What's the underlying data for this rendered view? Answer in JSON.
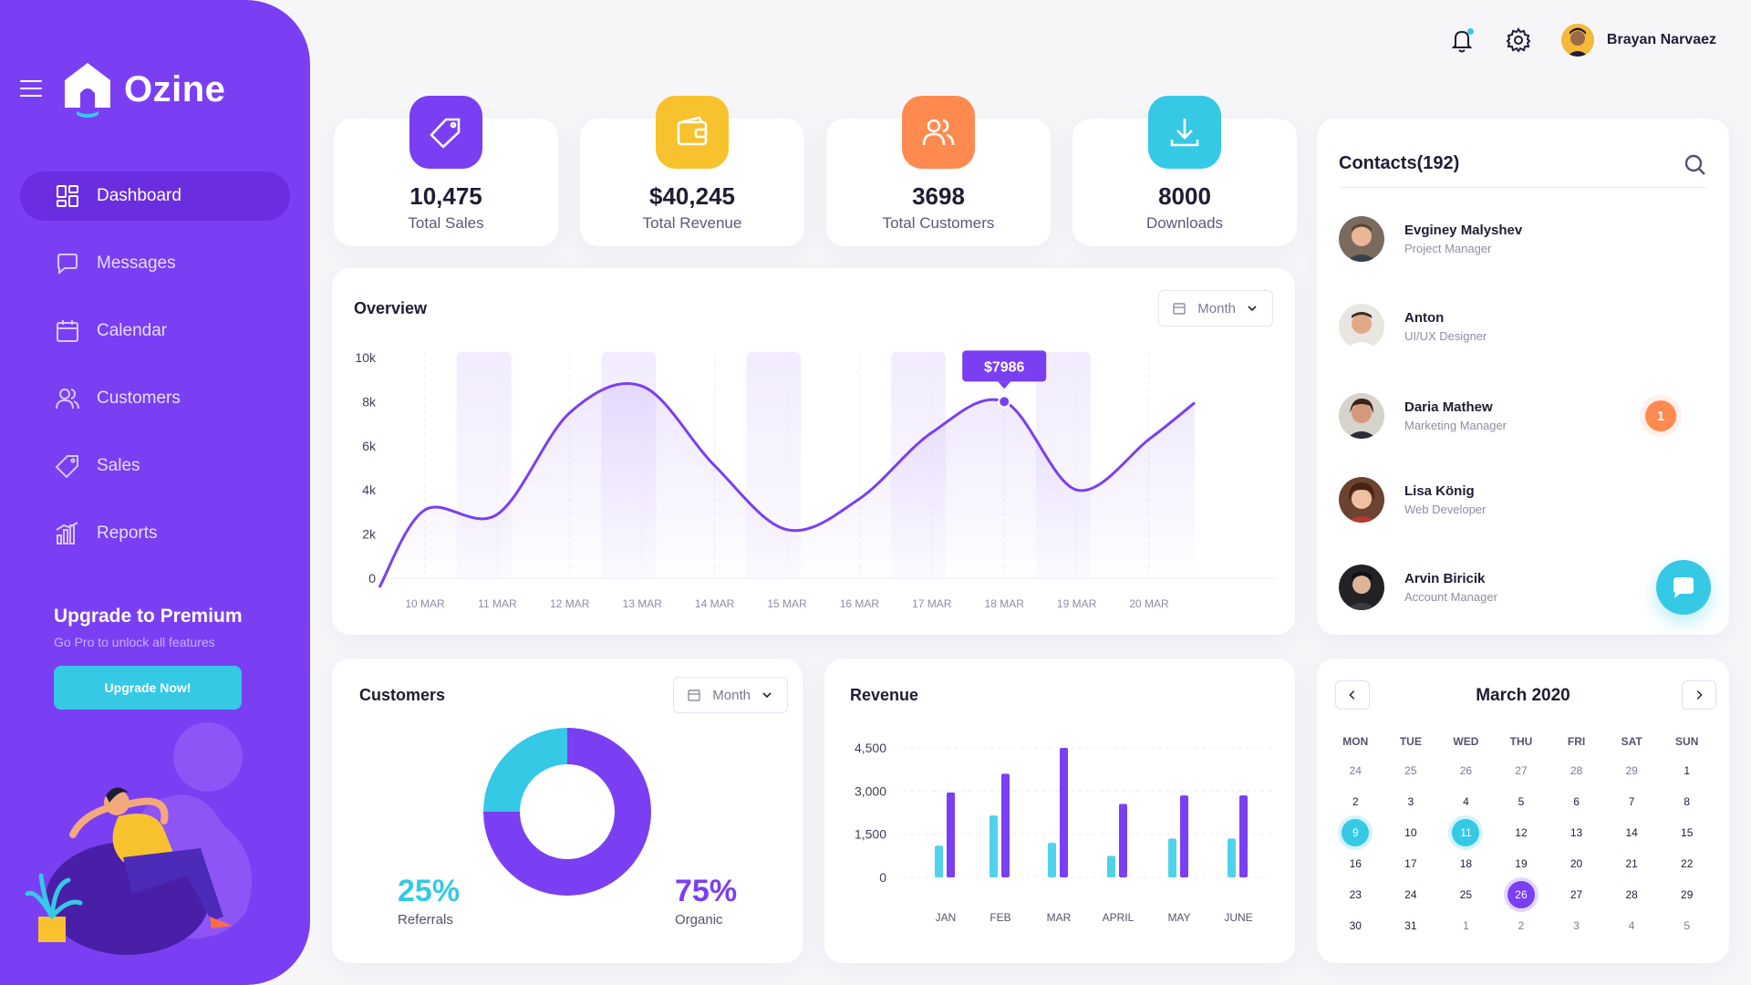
{
  "brand": {
    "name": "Ozine"
  },
  "sidebar": {
    "items": [
      {
        "label": "Dashboard",
        "icon": "dashboard-icon",
        "active": true
      },
      {
        "label": "Messages",
        "icon": "message-icon",
        "active": false
      },
      {
        "label": "Calendar",
        "icon": "calendar-icon",
        "active": false
      },
      {
        "label": "Customers",
        "icon": "users-icon",
        "active": false
      },
      {
        "label": "Sales",
        "icon": "tag-icon",
        "active": false
      },
      {
        "label": "Reports",
        "icon": "bar-chart-icon",
        "active": false
      }
    ],
    "upgrade": {
      "title": "Upgrade to Premium",
      "subtitle": "Go Pro to unlock all features",
      "button": "Upgrade Now!"
    }
  },
  "header": {
    "user_name": "Brayan Narvaez"
  },
  "stats": [
    {
      "value": "10,475",
      "label": "Total Sales",
      "icon": "tag-icon",
      "color": "#7a3ff2"
    },
    {
      "value": "$40,245",
      "label": "Total Revenue",
      "icon": "wallet-icon",
      "color": "#f8c22f"
    },
    {
      "value": "3698",
      "label": "Total Customers",
      "icon": "users-icon",
      "color": "#ff8a4f"
    },
    {
      "value": "8000",
      "label": "Downloads",
      "icon": "download-icon",
      "color": "#35c9e6"
    }
  ],
  "overview": {
    "title": "Overview",
    "filter": "Month",
    "tooltip": "$7986"
  },
  "customers_panel": {
    "title": "Customers",
    "filter": "Month",
    "referrals_pct": "25%",
    "referrals_label": "Referrals",
    "organic_pct": "75%",
    "organic_label": "Organic"
  },
  "revenue_panel": {
    "title": "Revenue"
  },
  "contacts": {
    "title": "Contacts(192)",
    "list": [
      {
        "name": "Evginey Malyshev",
        "role": "Project Manager",
        "badge": ""
      },
      {
        "name": "Anton",
        "role": "UI/UX Designer",
        "badge": ""
      },
      {
        "name": "Daria Mathew",
        "role": "Marketing Manager",
        "badge": "1"
      },
      {
        "name": "Lisa König",
        "role": "Web Developer",
        "badge": ""
      },
      {
        "name": "Arvin Biricik",
        "role": "Account Manager",
        "badge": ""
      }
    ]
  },
  "calendar": {
    "title": "March 2020",
    "days": [
      "MON",
      "TUE",
      "WED",
      "THU",
      "FRI",
      "SAT",
      "SUN"
    ],
    "cells": [
      {
        "d": "24",
        "s": "muted"
      },
      {
        "d": "25",
        "s": "muted"
      },
      {
        "d": "26",
        "s": "muted"
      },
      {
        "d": "27",
        "s": "muted"
      },
      {
        "d": "28",
        "s": "muted"
      },
      {
        "d": "29",
        "s": "muted"
      },
      {
        "d": "1",
        "s": ""
      },
      {
        "d": "2",
        "s": ""
      },
      {
        "d": "3",
        "s": ""
      },
      {
        "d": "4",
        "s": ""
      },
      {
        "d": "5",
        "s": ""
      },
      {
        "d": "6",
        "s": ""
      },
      {
        "d": "7",
        "s": ""
      },
      {
        "d": "8",
        "s": ""
      },
      {
        "d": "9",
        "s": "teal"
      },
      {
        "d": "10",
        "s": ""
      },
      {
        "d": "11",
        "s": "teal"
      },
      {
        "d": "12",
        "s": ""
      },
      {
        "d": "13",
        "s": ""
      },
      {
        "d": "14",
        "s": ""
      },
      {
        "d": "15",
        "s": ""
      },
      {
        "d": "16",
        "s": ""
      },
      {
        "d": "17",
        "s": ""
      },
      {
        "d": "18",
        "s": ""
      },
      {
        "d": "19",
        "s": ""
      },
      {
        "d": "20",
        "s": ""
      },
      {
        "d": "21",
        "s": ""
      },
      {
        "d": "22",
        "s": ""
      },
      {
        "d": "23",
        "s": ""
      },
      {
        "d": "24",
        "s": ""
      },
      {
        "d": "25",
        "s": ""
      },
      {
        "d": "26",
        "s": "purple"
      },
      {
        "d": "27",
        "s": ""
      },
      {
        "d": "28",
        "s": ""
      },
      {
        "d": "29",
        "s": ""
      },
      {
        "d": "30",
        "s": ""
      },
      {
        "d": "31",
        "s": ""
      },
      {
        "d": "1",
        "s": "muted"
      },
      {
        "d": "2",
        "s": "muted"
      },
      {
        "d": "3",
        "s": "muted"
      },
      {
        "d": "4",
        "s": "muted"
      },
      {
        "d": "5",
        "s": "muted"
      }
    ]
  },
  "chart_data": [
    {
      "type": "line",
      "x": [
        "10 MAR",
        "11 MAR",
        "12 MAR",
        "13 MAR",
        "14 MAR",
        "15 MAR",
        "16 MAR",
        "17 MAR",
        "18 MAR",
        "19 MAR",
        "20 MAR"
      ],
      "y_ticks": [
        "10k",
        "8k",
        "6k",
        "4k",
        "2k",
        "0"
      ],
      "ylim": [
        0,
        10000
      ],
      "values": [
        3100,
        2900,
        7500,
        8700,
        5100,
        2200,
        3600,
        6600,
        8000,
        4000,
        6300
      ],
      "highlight": {
        "x": "18 MAR",
        "value": 7986
      },
      "color": "#7a3ff2"
    },
    {
      "type": "donut",
      "slices": [
        {
          "name": "Referrals",
          "value": 25,
          "color": "#35c9e6"
        },
        {
          "name": "Organic",
          "value": 75,
          "color": "#7a3ff2"
        }
      ]
    },
    {
      "type": "bar",
      "categories": [
        "JAN",
        "FEB",
        "MAR",
        "APRIL",
        "MAY",
        "JUNE"
      ],
      "y_ticks": [
        "4,500",
        "3,000",
        "1,500",
        "0"
      ],
      "ylim": [
        0,
        4500
      ],
      "series": [
        {
          "color": "#4fd3ea",
          "values": [
            1100,
            2150,
            1200,
            750,
            1350,
            1350
          ]
        },
        {
          "color": "#7a3ff2",
          "values": [
            2950,
            3600,
            4500,
            2550,
            2850,
            2850
          ]
        }
      ]
    }
  ]
}
